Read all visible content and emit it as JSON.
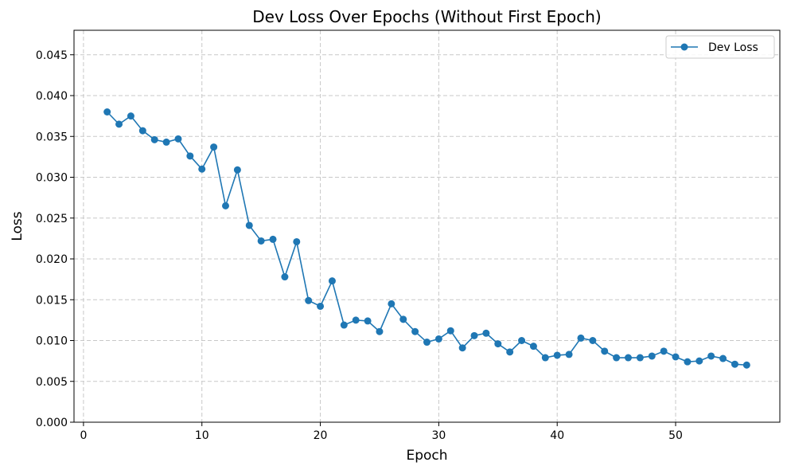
{
  "chart_data": {
    "type": "line",
    "title": "Dev Loss Over Epochs (Without First Epoch)",
    "xlabel": "Epoch",
    "ylabel": "Loss",
    "xlim": [
      -0.8,
      58.8
    ],
    "ylim": [
      0,
      0.048
    ],
    "xticks": [
      0,
      10,
      20,
      30,
      40,
      50
    ],
    "yticks": [
      0.0,
      0.005,
      0.01,
      0.015,
      0.02,
      0.025,
      0.03,
      0.035,
      0.04,
      0.045
    ],
    "ytick_labels": [
      "0.000",
      "0.005",
      "0.010",
      "0.015",
      "0.020",
      "0.025",
      "0.030",
      "0.035",
      "0.040",
      "0.045"
    ],
    "grid": true,
    "legend": "top-right",
    "series": [
      {
        "name": "Dev Loss",
        "color": "#1f77b4",
        "marker": "circle",
        "x": [
          2,
          3,
          4,
          5,
          6,
          7,
          8,
          9,
          10,
          11,
          12,
          13,
          14,
          15,
          16,
          17,
          18,
          19,
          20,
          21,
          22,
          23,
          24,
          25,
          26,
          27,
          28,
          29,
          30,
          31,
          32,
          33,
          34,
          35,
          36,
          37,
          38,
          39,
          40,
          41,
          42,
          43,
          44,
          45,
          46,
          47,
          48,
          49,
          50,
          51,
          52,
          53,
          54,
          55,
          56
        ],
        "values": [
          0.038,
          0.0365,
          0.0375,
          0.0357,
          0.0346,
          0.0343,
          0.0347,
          0.0326,
          0.031,
          0.0337,
          0.0265,
          0.0309,
          0.0241,
          0.0222,
          0.0224,
          0.0178,
          0.0221,
          0.0149,
          0.0142,
          0.0173,
          0.0119,
          0.0125,
          0.0124,
          0.0111,
          0.0145,
          0.0126,
          0.0111,
          0.0098,
          0.0102,
          0.0112,
          0.0091,
          0.0106,
          0.0109,
          0.0096,
          0.0086,
          0.01,
          0.0093,
          0.0079,
          0.0082,
          0.0083,
          0.0103,
          0.01,
          0.0087,
          0.0079,
          0.0079,
          0.0079,
          0.0081,
          0.0087,
          0.008,
          0.0074,
          0.0075,
          0.0081,
          0.0078,
          0.0071,
          0.007
        ]
      }
    ]
  }
}
